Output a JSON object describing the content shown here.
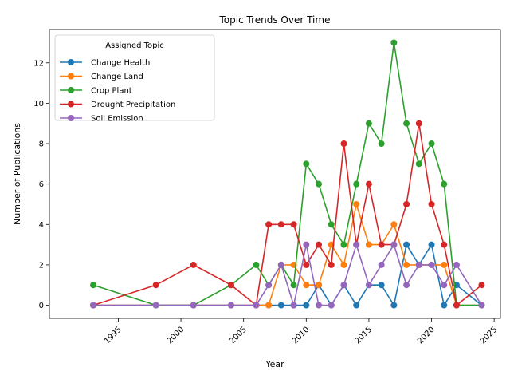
{
  "chart_data": {
    "type": "line",
    "title": "Topic Trends Over Time",
    "xlabel": "Year",
    "ylabel": "Number of Publications",
    "xlim": [
      1989.5,
      2025.5
    ],
    "ylim": [
      -0.65,
      13.65
    ],
    "x_ticks": [
      1995,
      2000,
      2005,
      2010,
      2015,
      2020,
      2025
    ],
    "y_ticks": [
      0,
      2,
      4,
      6,
      8,
      10,
      12
    ],
    "grid": false,
    "legend": {
      "title": "Assigned Topic",
      "placement": "upper-left"
    },
    "series": [
      {
        "name": "Change Health",
        "color": "#1f77b4",
        "x": [
          1993,
          1998,
          2001,
          2004,
          2006,
          2007,
          2008,
          2009,
          2010,
          2011,
          2012,
          2013,
          2014,
          2015,
          2016,
          2017,
          2018,
          2019,
          2020,
          2021,
          2022,
          2024
        ],
        "y": [
          0,
          0,
          0,
          0,
          0,
          0,
          0,
          0,
          0,
          1,
          0,
          1,
          0,
          1,
          1,
          0,
          3,
          2,
          3,
          0,
          1,
          0
        ]
      },
      {
        "name": "Change Land",
        "color": "#ff7f0e",
        "x": [
          1993,
          1998,
          2001,
          2004,
          2006,
          2007,
          2008,
          2009,
          2010,
          2011,
          2012,
          2013,
          2014,
          2015,
          2016,
          2017,
          2018,
          2019,
          2020,
          2021,
          2022,
          2024
        ],
        "y": [
          0,
          0,
          0,
          0,
          0,
          0,
          2,
          2,
          1,
          1,
          3,
          2,
          5,
          3,
          3,
          4,
          2,
          2,
          2,
          2,
          0,
          0
        ]
      },
      {
        "name": "Crop Plant",
        "color": "#2ca02c",
        "x": [
          1993,
          1998,
          2001,
          2004,
          2006,
          2007,
          2008,
          2009,
          2010,
          2011,
          2012,
          2013,
          2014,
          2015,
          2016,
          2017,
          2018,
          2019,
          2020,
          2021,
          2022,
          2024
        ],
        "y": [
          1,
          0,
          0,
          1,
          2,
          1,
          2,
          1,
          7,
          6,
          4,
          3,
          6,
          9,
          8,
          13,
          9,
          7,
          8,
          6,
          0,
          0
        ]
      },
      {
        "name": "Drought Precipitation",
        "color": "#d62728",
        "x": [
          1993,
          1998,
          2001,
          2004,
          2006,
          2007,
          2008,
          2009,
          2010,
          2011,
          2012,
          2013,
          2014,
          2015,
          2016,
          2017,
          2018,
          2019,
          2020,
          2021,
          2022,
          2024
        ],
        "y": [
          0,
          1,
          2,
          1,
          0,
          4,
          4,
          4,
          2,
          3,
          2,
          8,
          3,
          6,
          3,
          3,
          5,
          9,
          5,
          3,
          0,
          1
        ]
      },
      {
        "name": "Soil Emission",
        "color": "#9467bd",
        "x": [
          1993,
          1998,
          2001,
          2004,
          2006,
          2007,
          2008,
          2009,
          2010,
          2011,
          2012,
          2013,
          2014,
          2015,
          2016,
          2017,
          2018,
          2019,
          2020,
          2021,
          2022,
          2024
        ],
        "y": [
          0,
          0,
          0,
          0,
          0,
          1,
          2,
          0,
          3,
          0,
          0,
          1,
          3,
          1,
          2,
          3,
          1,
          2,
          2,
          1,
          2,
          0
        ]
      }
    ]
  }
}
